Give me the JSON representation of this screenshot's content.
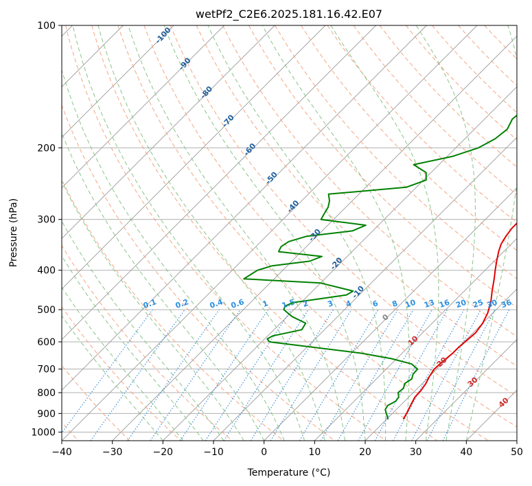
{
  "chart_data": {
    "type": "line",
    "title": "wetPf2_C2E6.2025.181.16.42.E07",
    "xlabel": "Temperature (°C)",
    "ylabel": "Pressure (hPa)",
    "xlim": [
      -40,
      50
    ],
    "ylim": [
      1050,
      100
    ],
    "y_scale": "log",
    "grid": true,
    "x_ticks": [
      -40,
      -30,
      -20,
      -10,
      0,
      10,
      20,
      30,
      40,
      50
    ],
    "y_ticks": [
      100,
      200,
      300,
      400,
      500,
      600,
      700,
      800,
      900,
      1000
    ],
    "skew": 45,
    "colors": {
      "temperature": "#e00000",
      "dewpoint": "#008000",
      "dry_adiabat": "#f4a582",
      "moist_adiabat": "#88c488",
      "mixing_ratio": "#3a8fd8",
      "isotherm": "#999999",
      "dry_label": "#1f5f9e",
      "mix_label": "#2b8fe0",
      "moist_label": "#d03030",
      "zero_label": "#888888"
    },
    "series": [
      {
        "key": "temperature",
        "pressure": [
          930,
          900,
          860,
          820,
          790,
          760,
          730,
          700,
          680,
          660,
          640,
          620,
          600,
          570,
          540,
          510,
          480,
          450,
          420,
          400,
          380,
          360,
          345,
          330,
          315,
          300,
          285,
          270,
          255,
          240,
          220,
          200,
          180,
          160,
          150,
          140,
          130,
          115,
          105,
          100
        ],
        "temperature": [
          23.3,
          22.8,
          22.0,
          21.2,
          21.1,
          20.7,
          20.0,
          19.5,
          19.6,
          19.8,
          20.0,
          20.0,
          20.2,
          20.5,
          20.0,
          19.0,
          17.5,
          15.5,
          13.5,
          12.0,
          10.5,
          9.0,
          8.0,
          7.4,
          7.0,
          7.0,
          7.4,
          8.2,
          8.0,
          7.3,
          6.7,
          5.6,
          5.5,
          6.0,
          5.8,
          5.2,
          5.5,
          6.5,
          7.5,
          8.8
        ]
      },
      {
        "key": "dewpoint",
        "pressure": [
          930,
          900,
          880,
          860,
          840,
          820,
          800,
          780,
          760,
          740,
          720,
          700,
          680,
          660,
          640,
          600,
          590,
          580,
          560,
          540,
          520,
          500,
          490,
          480,
          470,
          460,
          450,
          430,
          420,
          410,
          400,
          390,
          380,
          370,
          360,
          350,
          340,
          330,
          320,
          310,
          300,
          290,
          280,
          270,
          260,
          250,
          240,
          230,
          220,
          210,
          200,
          190,
          180,
          170,
          160,
          150,
          140,
          130,
          120,
          110,
          100
        ],
        "temperature": [
          20.3,
          18.8,
          17.8,
          17.5,
          18.2,
          18.0,
          17.0,
          17.2,
          16.5,
          17.0,
          16.3,
          16.2,
          14.0,
          9.0,
          2.0,
          -18.5,
          -19.5,
          -19.0,
          -14.5,
          -15.0,
          -19.0,
          -22.0,
          -22.5,
          -21.5,
          -17.0,
          -12.5,
          -12.0,
          -20.0,
          -36.0,
          -35.5,
          -35.0,
          -33.0,
          -26.5,
          -25.0,
          -34.5,
          -35.0,
          -34.5,
          -32.0,
          -24.0,
          -22.5,
          -32.5,
          -33.0,
          -33.5,
          -34.5,
          -36.0,
          -22.0,
          -19.5,
          -21.0,
          -25.0,
          -19.0,
          -15.5,
          -14.0,
          -13.5,
          -14.5,
          -14.0,
          -11.5,
          -8.5,
          -6.0,
          -4.0,
          -2.0,
          0.8
        ]
      }
    ],
    "dry_adiabat_labels": [
      "-100",
      "-90",
      "-80",
      "-70",
      "-60",
      "-50",
      "-40",
      "-30",
      "-20",
      "-10"
    ],
    "mixing_ratio_labels": [
      "0.1",
      "0.2",
      "0.4",
      "0.6",
      "1",
      "1.5",
      "2",
      "3",
      "4",
      "6",
      "8",
      "10",
      "13",
      "16",
      "20",
      "25",
      "30",
      "36"
    ],
    "mixing_ratio_values": [
      0.1,
      0.2,
      0.4,
      0.6,
      1,
      1.5,
      2,
      3,
      4,
      6,
      8,
      10,
      13,
      16,
      20,
      25,
      30,
      36
    ],
    "moist_adiabat_labels": [
      "0",
      "10",
      "20",
      "30",
      "40"
    ]
  }
}
